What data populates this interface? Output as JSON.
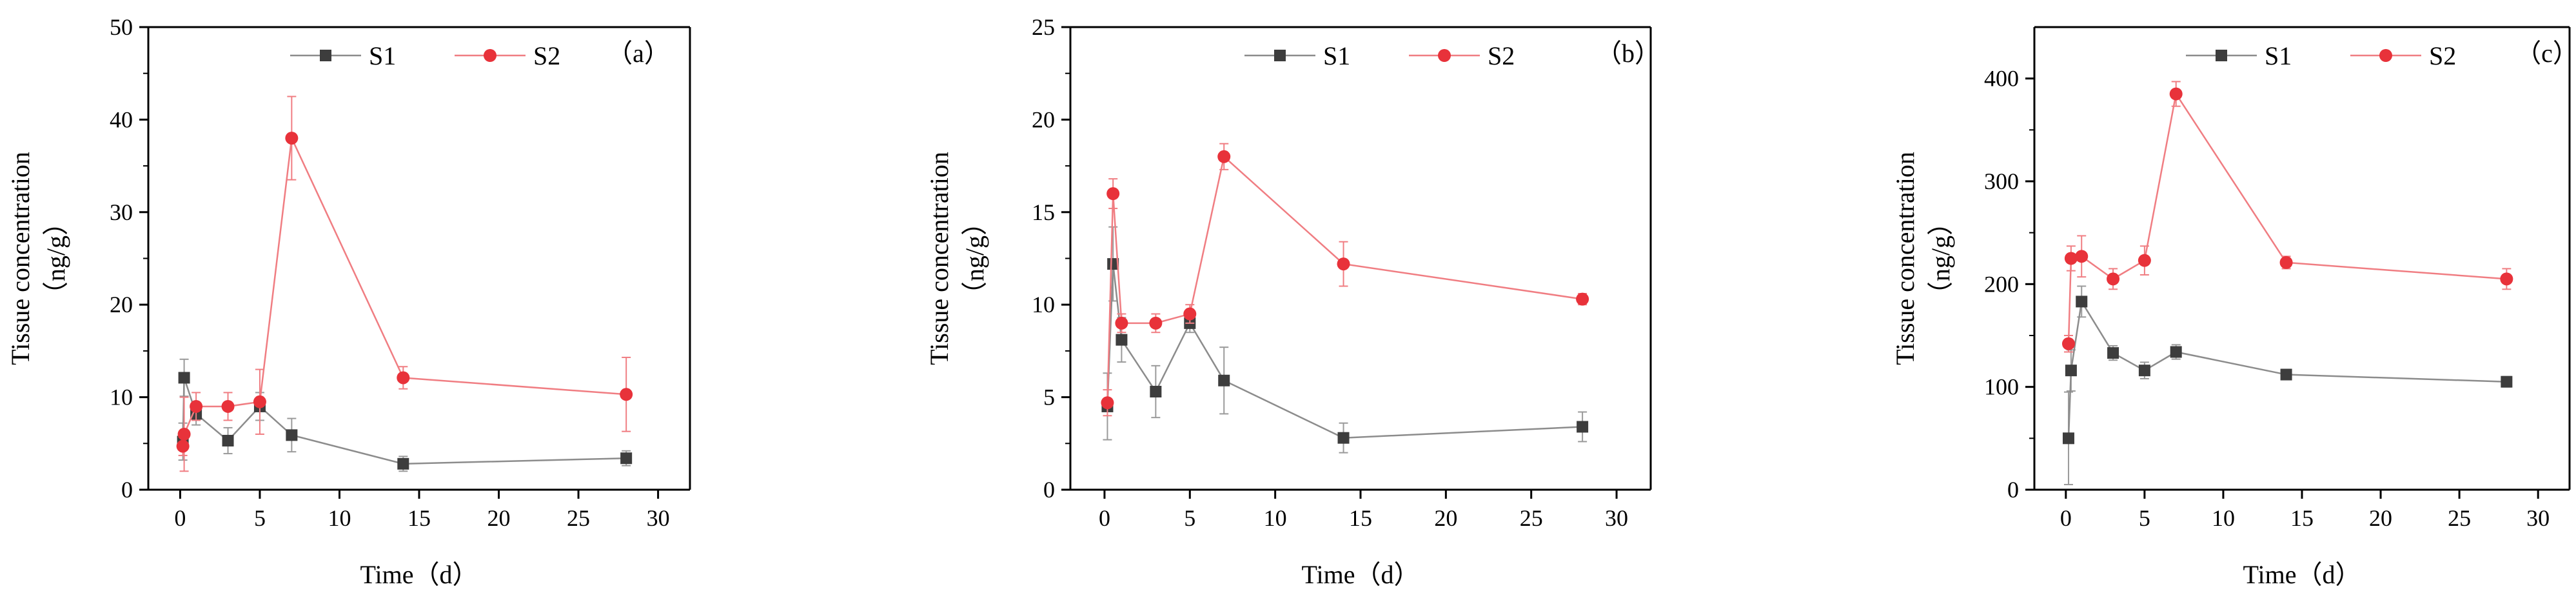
{
  "figure": {
    "colors": {
      "S1": "#3d3d3d",
      "S1_line": "#8c8c8c",
      "S2": "#e8323a",
      "S2_line": "#f07d82",
      "error": "#9a9a9a"
    }
  },
  "chart_data": [
    {
      "type": "line",
      "panel_label": "（a）",
      "xlabel": "Time（d）",
      "ylabel_line1": "Tissue concentration",
      "ylabel_line2": "（ng/g）",
      "xlim": [
        -2,
        32
      ],
      "ylim": [
        0,
        50
      ],
      "x_ticks": [
        0,
        5,
        10,
        15,
        20,
        25,
        30
      ],
      "y_ticks": [
        0,
        10,
        20,
        30,
        40,
        50
      ],
      "legend": [
        "S1",
        "S2"
      ],
      "series": [
        {
          "name": "S1",
          "x": [
            0.17,
            0.25,
            1,
            3,
            5,
            7,
            14,
            28
          ],
          "y": [
            5.2,
            12.1,
            8.2,
            5.3,
            9.0,
            5.9,
            2.8,
            3.4
          ],
          "err": [
            2.0,
            2.0,
            1.2,
            1.4,
            1.5,
            1.8,
            0.8,
            0.8
          ]
        },
        {
          "name": "S2",
          "x": [
            0.17,
            0.25,
            1,
            3,
            5,
            7,
            14,
            28
          ],
          "y": [
            4.7,
            6.0,
            9.0,
            9.0,
            9.5,
            38.0,
            12.1,
            10.3
          ],
          "err": [
            1.0,
            4.0,
            1.5,
            1.5,
            3.5,
            4.5,
            1.2,
            4.0
          ]
        }
      ]
    },
    {
      "type": "line",
      "panel_label": "（b）",
      "xlabel": "Time（d）",
      "ylabel_line1": "Tissue concentration",
      "ylabel_line2": "（ng/g）",
      "xlim": [
        -2,
        32
      ],
      "ylim": [
        0,
        25
      ],
      "x_ticks": [
        0,
        5,
        10,
        15,
        20,
        25,
        30
      ],
      "y_ticks": [
        0,
        5,
        10,
        15,
        20,
        25
      ],
      "legend": [
        "S1",
        "S2"
      ],
      "series": [
        {
          "name": "S1",
          "x": [
            0.17,
            0.5,
            1,
            3,
            5,
            7,
            14,
            28
          ],
          "y": [
            4.5,
            12.2,
            8.1,
            5.3,
            9.0,
            5.9,
            2.8,
            3.4
          ],
          "err": [
            1.8,
            2.0,
            1.2,
            1.4,
            0.5,
            1.8,
            0.8,
            0.8
          ]
        },
        {
          "name": "S2",
          "x": [
            0.17,
            0.5,
            1,
            3,
            5,
            7,
            14,
            28
          ],
          "y": [
            4.7,
            16.0,
            9.0,
            9.0,
            9.5,
            18.0,
            12.2,
            10.3
          ],
          "err": [
            0.7,
            0.8,
            0.5,
            0.5,
            0.5,
            0.7,
            1.2,
            0.3
          ]
        }
      ]
    },
    {
      "type": "line",
      "panel_label": "（c）",
      "xlabel": "Time（d）",
      "ylabel_line1": "Tissue concentration",
      "ylabel_line2": "（ng/g）",
      "xlim": [
        -2,
        32
      ],
      "ylim": [
        0,
        450
      ],
      "x_ticks": [
        0,
        5,
        10,
        15,
        20,
        25,
        30
      ],
      "y_ticks": [
        0,
        100,
        200,
        300,
        400
      ],
      "legend": [
        "S1",
        "S2"
      ],
      "series": [
        {
          "name": "S1",
          "x": [
            0.17,
            0.33,
            1,
            3,
            5,
            7,
            14,
            28
          ],
          "y": [
            50,
            116,
            183,
            133,
            116,
            134,
            112,
            105
          ],
          "err": [
            45,
            20,
            15,
            7,
            8,
            7,
            5,
            5
          ]
        },
        {
          "name": "S2",
          "x": [
            0.17,
            0.33,
            1,
            3,
            5,
            7,
            14,
            28
          ],
          "y": [
            142,
            225,
            227,
            205,
            223,
            385,
            221,
            205
          ],
          "err": [
            8,
            12,
            20,
            10,
            14,
            12,
            6,
            10
          ]
        }
      ]
    }
  ]
}
